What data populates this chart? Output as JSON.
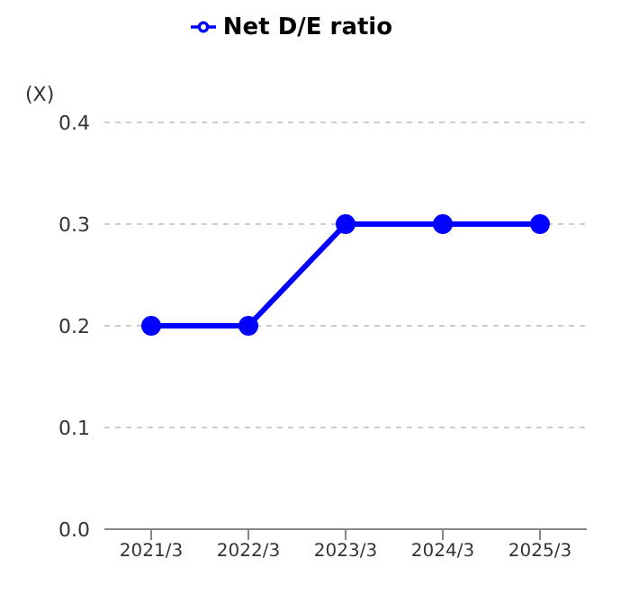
{
  "chart_data": {
    "type": "line",
    "ylabel": "(X)",
    "categories": [
      "2021/3",
      "2022/3",
      "2023/3",
      "2024/3",
      "2025/3"
    ],
    "series": [
      {
        "name": "Net D/E ratio",
        "color": "#0000ff",
        "values": [
          0.2,
          0.2,
          0.3,
          0.3,
          0.3
        ]
      }
    ],
    "ylim": [
      0,
      0.4
    ],
    "yticks": [
      {
        "value": 0,
        "label": "0.0"
      },
      {
        "value": 0.1,
        "label": "0.1"
      },
      {
        "value": 0.2,
        "label": "0.2"
      },
      {
        "value": 0.3,
        "label": "0.3"
      },
      {
        "value": 0.4,
        "label": "0.4"
      }
    ],
    "grid": "y",
    "legend": "top",
    "marker": "circle",
    "line_style": "solid"
  }
}
